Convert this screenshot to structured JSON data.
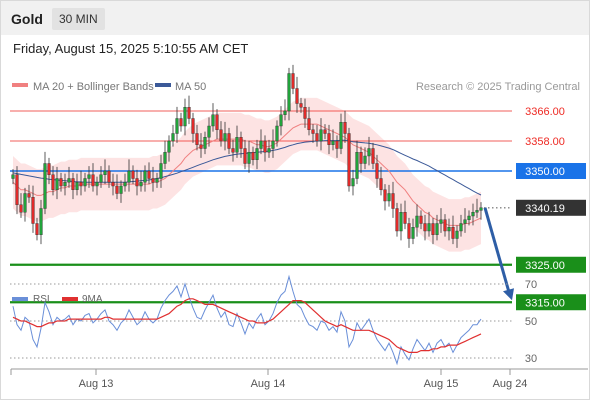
{
  "header": {
    "symbol": "Gold",
    "timeframe": "30 MIN",
    "datetime": "Friday, August 15, 2025 5:10:55 AM CET"
  },
  "legend": {
    "ma20_label": "MA 20 + Bollinger Bands",
    "ma50_label": "MA 50",
    "credit": "Research © 2025 Trading Central",
    "ma20_color": "#f08080",
    "ma50_color": "#3b5998"
  },
  "rsi_legend": {
    "rsi_label": "RSI",
    "ma_label": "9MA",
    "rsi_color": "#6a8fd8",
    "ma_color": "#e03030"
  },
  "chart_data": [
    {
      "type": "candlestick",
      "xlabel": "",
      "ylabel": "",
      "x_ticks": [
        "Aug 13",
        "Aug 14",
        "Aug 15",
        "Aug 24"
      ],
      "ylim": [
        3305,
        3392
      ],
      "levels": [
        {
          "label": "3366.00",
          "value": 3366.0,
          "kind": "resistance",
          "color": "#ee2a24"
        },
        {
          "label": "3358.00",
          "value": 3358.0,
          "kind": "resistance",
          "color": "#ee2a24"
        },
        {
          "label": "3350.00",
          "value": 3350.0,
          "kind": "pivot",
          "color": "#1a73e8"
        },
        {
          "label": "3325.00",
          "value": 3325.0,
          "kind": "support",
          "color": "#1a8f1a"
        },
        {
          "label": "3315.00",
          "value": 3315.0,
          "kind": "support",
          "color": "#1a8f1a"
        }
      ],
      "last_price": {
        "label": "3340.19",
        "value": 3340.19
      },
      "projection": {
        "from": 3340.19,
        "to": 3315.0
      },
      "close": [
        3349,
        3341,
        3339,
        3344,
        3343,
        3336,
        3333,
        3340,
        3352,
        3349,
        3345,
        3348,
        3346,
        3347,
        3348,
        3345,
        3347,
        3346,
        3348,
        3349,
        3346,
        3347,
        3349,
        3350,
        3347,
        3346,
        3344,
        3346,
        3347,
        3350,
        3348,
        3346,
        3347,
        3350,
        3348,
        3347,
        3348,
        3352,
        3355,
        3358,
        3360,
        3364,
        3362,
        3367,
        3364,
        3360,
        3357,
        3356,
        3359,
        3362,
        3365,
        3361,
        3358,
        3360,
        3356,
        3355,
        3359,
        3356,
        3352,
        3355,
        3353,
        3356,
        3358,
        3355,
        3356,
        3358,
        3362,
        3365,
        3366,
        3376,
        3372,
        3368,
        3367,
        3364,
        3361,
        3360,
        3358,
        3361,
        3360,
        3357,
        3358,
        3356,
        3363,
        3360,
        3346,
        3348,
        3355,
        3352,
        3354,
        3356,
        3352,
        3348,
        3345,
        3342,
        3344,
        3340,
        3334,
        3339,
        3336,
        3332,
        3335,
        3338,
        3336,
        3334,
        3336,
        3333,
        3336,
        3337,
        3334,
        3335,
        3332,
        3334,
        3336,
        3337,
        3338,
        3339,
        3339.5,
        3340.19
      ],
      "ma20": [
        3347,
        3346,
        3345,
        3345,
        3344.5,
        3344,
        3343.5,
        3343.5,
        3344,
        3344.5,
        3344.5,
        3345,
        3345.5,
        3345.5,
        3346,
        3346,
        3346,
        3346.5,
        3346.5,
        3346.5,
        3346.5,
        3346.5,
        3346.5,
        3346.5,
        3346.5,
        3346.5,
        3346.5,
        3346.5,
        3346.5,
        3346.5,
        3346.5,
        3346.5,
        3346.5,
        3346.5,
        3346.5,
        3347,
        3347,
        3347.5,
        3348,
        3349,
        3350,
        3351,
        3352,
        3353.5,
        3354.5,
        3355.5,
        3356,
        3356.5,
        3357,
        3357.5,
        3358,
        3358.5,
        3358.5,
        3358.5,
        3358.5,
        3358.5,
        3358.5,
        3358.5,
        3358,
        3358,
        3357.5,
        3357,
        3357,
        3356.5,
        3356.5,
        3357,
        3357.5,
        3358.5,
        3359.5,
        3360.5,
        3361.5,
        3362,
        3362.5,
        3362.5,
        3362.5,
        3362.5,
        3362.5,
        3362,
        3361.5,
        3361,
        3360.5,
        3360,
        3359.5,
        3359,
        3358,
        3357,
        3356.5,
        3356,
        3355.5,
        3355,
        3354,
        3353,
        3352,
        3351,
        3350,
        3348.5,
        3347,
        3346,
        3345,
        3343.5,
        3342,
        3341,
        3340,
        3339,
        3338.5,
        3337.5,
        3337,
        3336.5,
        3336,
        3335.5,
        3335.5,
        3335.5,
        3335.5,
        3336,
        3336,
        3336.5,
        3337,
        3337.5
      ],
      "bb_width": 7,
      "ma50": [
        3349.5,
        3349.3,
        3349.1,
        3348.9,
        3348.7,
        3348.5,
        3348.3,
        3348.1,
        3348,
        3347.8,
        3347.7,
        3347.6,
        3347.5,
        3347.4,
        3347.3,
        3347.2,
        3347.1,
        3347.1,
        3347,
        3347,
        3347,
        3347,
        3347,
        3347,
        3347,
        3347,
        3347,
        3347,
        3347,
        3347.1,
        3347.2,
        3347.3,
        3347.4,
        3347.5,
        3347.6,
        3347.8,
        3348,
        3348.2,
        3348.5,
        3348.8,
        3349.1,
        3349.4,
        3349.8,
        3350.2,
        3350.6,
        3351,
        3351.4,
        3351.8,
        3352.2,
        3352.6,
        3353,
        3353.3,
        3353.6,
        3353.9,
        3354.1,
        3354.3,
        3354.5,
        3354.6,
        3354.7,
        3354.8,
        3354.9,
        3355,
        3355.1,
        3355.2,
        3355.3,
        3355.5,
        3355.7,
        3356,
        3356.3,
        3356.7,
        3357,
        3357.3,
        3357.5,
        3357.7,
        3357.8,
        3357.9,
        3358,
        3358,
        3358.1,
        3358.1,
        3358.1,
        3358.1,
        3358.2,
        3358.2,
        3358,
        3357.8,
        3357.7,
        3357.6,
        3357.5,
        3357.4,
        3357.2,
        3357,
        3356.7,
        3356.4,
        3356.1,
        3355.7,
        3355.2,
        3354.7,
        3354.2,
        3353.7,
        3353.2,
        3352.8,
        3352.3,
        3351.8,
        3351.3,
        3350.7,
        3350.1,
        3349.5,
        3348.9,
        3348.3,
        3347.7,
        3347.1,
        3346.5,
        3345.9,
        3345.3,
        3344.7,
        3344.1,
        3343.6
      ],
      "legend": [
        "MA 20 + Bollinger Bands",
        "MA 50"
      ]
    },
    {
      "type": "line",
      "title": "",
      "ylim": [
        20,
        80
      ],
      "y_ticks": [
        "70",
        "50",
        "30"
      ],
      "series": [
        {
          "name": "RSI",
          "values": [
            58,
            48,
            45,
            52,
            50,
            40,
            36,
            46,
            60,
            55,
            48,
            52,
            50,
            51,
            53,
            48,
            51,
            50,
            53,
            54,
            49,
            51,
            54,
            56,
            50,
            48,
            45,
            49,
            51,
            56,
            52,
            48,
            50,
            55,
            51,
            49,
            51,
            57,
            61,
            64,
            66,
            69,
            63,
            70,
            63,
            57,
            52,
            51,
            56,
            60,
            64,
            57,
            52,
            55,
            48,
            47,
            54,
            49,
            43,
            49,
            46,
            51,
            54,
            48,
            50,
            54,
            60,
            64,
            66,
            74,
            66,
            59,
            57,
            52,
            48,
            47,
            45,
            50,
            49,
            45,
            47,
            44,
            55,
            50,
            36,
            40,
            49,
            45,
            48,
            51,
            45,
            40,
            37,
            34,
            38,
            33,
            27,
            36,
            32,
            29,
            35,
            40,
            37,
            34,
            38,
            33,
            38,
            40,
            36,
            38,
            33,
            37,
            41,
            43,
            45,
            48,
            48,
            51
          ]
        },
        {
          "name": "9MA",
          "values": [
            52,
            51,
            50,
            50,
            49,
            48,
            47,
            47,
            48,
            49,
            49,
            50,
            50,
            50,
            51,
            51,
            51,
            51,
            51,
            51,
            51,
            51,
            51,
            52,
            52,
            51,
            51,
            51,
            51,
            51,
            51,
            51,
            51,
            51,
            51,
            51,
            51,
            52,
            53,
            54,
            56,
            58,
            59,
            61,
            62,
            62,
            61,
            60,
            59,
            59,
            59,
            58,
            57,
            56,
            55,
            54,
            53,
            52,
            51,
            50,
            50,
            49,
            49,
            49,
            50,
            51,
            53,
            55,
            57,
            59,
            61,
            61,
            61,
            60,
            58,
            56,
            54,
            52,
            50,
            49,
            48,
            47,
            48,
            47,
            46,
            45,
            45,
            45,
            45,
            45,
            44,
            43,
            42,
            41,
            40,
            38,
            36,
            35,
            34,
            33,
            33,
            33,
            34,
            34,
            34,
            35,
            35,
            36,
            36,
            37,
            37,
            37,
            38,
            39,
            40,
            41,
            42,
            43
          ]
        }
      ],
      "legend": [
        "RSI",
        "9MA"
      ]
    }
  ]
}
